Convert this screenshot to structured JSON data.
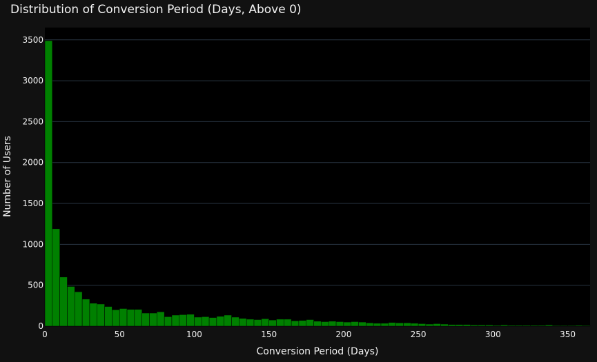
{
  "chart_data": {
    "type": "bar",
    "title": "Distribution of Conversion Period (Days, Above 0)",
    "xlabel": "Conversion Period (Days)",
    "ylabel": "Number of Users",
    "bin_width": 5,
    "bin_start": 0,
    "xlim": [
      0,
      365
    ],
    "ylim": [
      0,
      3650
    ],
    "x_ticks": [
      0,
      50,
      100,
      150,
      200,
      250,
      300,
      350
    ],
    "y_ticks": [
      0,
      500,
      1000,
      1500,
      2000,
      2500,
      3000,
      3500
    ],
    "grid": true,
    "bar_color": "#008000",
    "values": [
      3490,
      1190,
      600,
      485,
      420,
      330,
      280,
      270,
      240,
      200,
      215,
      205,
      205,
      160,
      160,
      175,
      115,
      135,
      140,
      145,
      110,
      115,
      105,
      120,
      135,
      110,
      95,
      85,
      80,
      90,
      75,
      85,
      85,
      65,
      70,
      80,
      60,
      55,
      60,
      55,
      50,
      55,
      50,
      40,
      35,
      35,
      45,
      40,
      40,
      35,
      30,
      25,
      30,
      25,
      20,
      20,
      20,
      15,
      15,
      15,
      10,
      15,
      10,
      10,
      10,
      10,
      10,
      15,
      8,
      8,
      8,
      10,
      8
    ]
  }
}
